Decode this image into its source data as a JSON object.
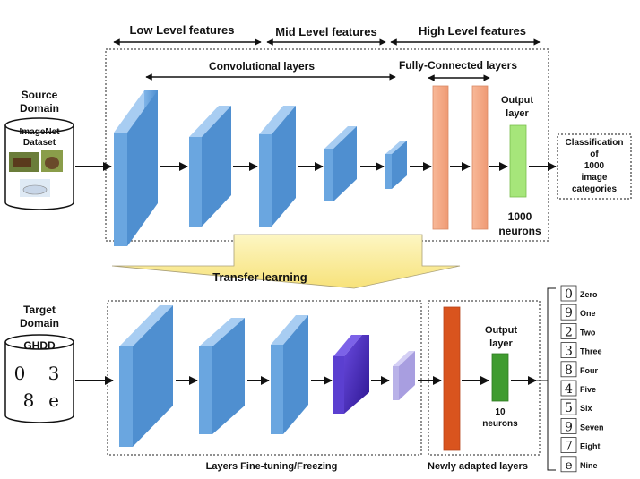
{
  "headers": {
    "low": "Low Level features",
    "mid": "Mid Level features",
    "high": "High Level features"
  },
  "source": {
    "domain_line1": "Source",
    "domain_line2": "Domain",
    "dataset_line1": "ImageNet",
    "dataset_line2": "Dataset",
    "conv_label": "Convolutional layers",
    "fc_label": "Fully-Connected layers",
    "output_label_line1": "Output",
    "output_label_line2": "layer",
    "neurons_line1": "1000",
    "neurons_line2": "neurons",
    "classification": [
      "Classification",
      "of",
      "1000",
      "image",
      "categories"
    ]
  },
  "transfer_label": "Transfer learning",
  "target": {
    "domain_line1": "Target",
    "domain_line2": "Domain",
    "dataset": "GHDD",
    "output_label_line1": "Output",
    "output_label_line2": "layer",
    "neurons_line1": "10",
    "neurons_line2": "neurons",
    "finetune_label": "Layers Fine-tuning/Freezing",
    "adapted_label": "Newly adapted layers"
  },
  "digits": [
    {
      "glyph": "0",
      "name": "Zero"
    },
    {
      "glyph": "9",
      "name": "One"
    },
    {
      "glyph": "2",
      "name": "Two"
    },
    {
      "glyph": "3",
      "name": "Three"
    },
    {
      "glyph": "8",
      "name": "Four"
    },
    {
      "glyph": "4",
      "name": "Five"
    },
    {
      "glyph": "5",
      "name": "Six"
    },
    {
      "glyph": "9",
      "name": "Seven"
    },
    {
      "glyph": "7",
      "name": "Eight"
    },
    {
      "glyph": "e",
      "name": "Nine"
    }
  ],
  "colors": {
    "conv_blue": "#5b9bd5",
    "fc_salmon": "#f4a582",
    "output_green": "#a6e67a",
    "target_orange": "#d9541e",
    "target_green": "#3f9b2f",
    "purple": "#4b2bb8",
    "lavender": "#b9b2e8",
    "transfer_yellow": "#fbf0a0"
  }
}
